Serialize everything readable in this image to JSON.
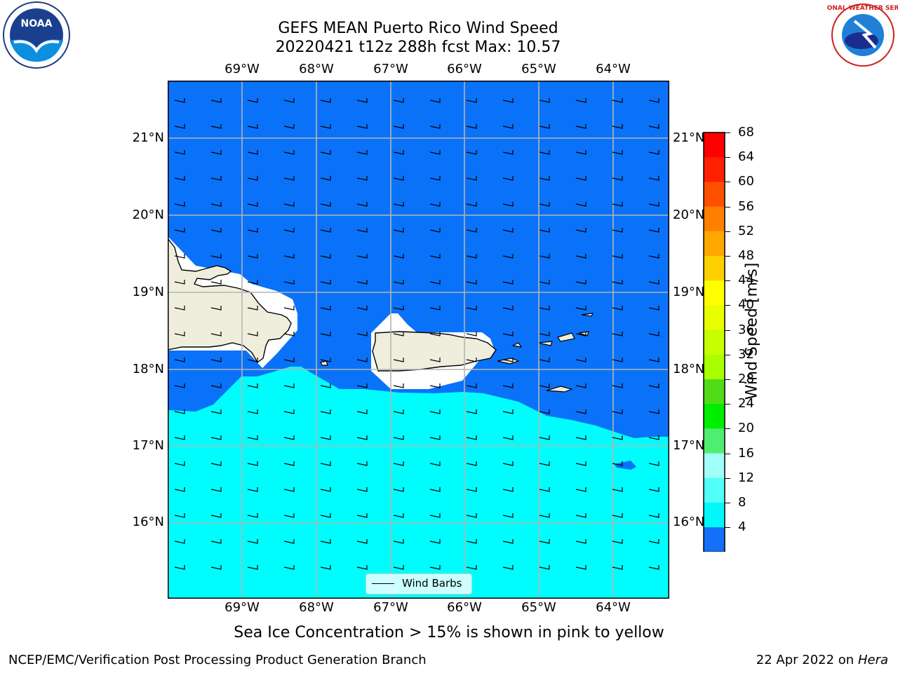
{
  "title": {
    "line1": "GEFS MEAN Puerto Rico Wind Speed",
    "line2": "20220421 t12z 288h fcst   Max: 10.57"
  },
  "logos": {
    "left": {
      "icon": "noaa-logo",
      "text": "NOAA"
    },
    "right": {
      "icon": "nws-logo",
      "text": "NATIONAL WEATHER SERVICE"
    }
  },
  "map": {
    "lon_labels": [
      "69°W",
      "68°W",
      "67°W",
      "66°W",
      "65°W",
      "64°W"
    ],
    "lat_labels": [
      "21°N",
      "20°N",
      "19°N",
      "18°N",
      "17°N",
      "16°N"
    ],
    "legend_label": "Wind Barbs",
    "colors": {
      "ocean_dark": "#0a72f8",
      "ocean_light": "#00fdfd",
      "land": "#efeedd",
      "mask": "#ffffff"
    }
  },
  "colorbar": {
    "label": "Wind Speed [m/s]",
    "ticks": [
      "68",
      "64",
      "60",
      "56",
      "52",
      "48",
      "44",
      "40",
      "36",
      "32",
      "28",
      "24",
      "20",
      "16",
      "12",
      "8",
      "4"
    ],
    "colors": [
      "#ff0000",
      "#ff2000",
      "#ff5000",
      "#ff8000",
      "#ffa800",
      "#ffd000",
      "#ffff00",
      "#e8ff00",
      "#c8ff00",
      "#a8ff00",
      "#50dd18",
      "#00ee00",
      "#50ee70",
      "#a0fff8",
      "#50fff8",
      "#00f8f8",
      "#1470f8"
    ],
    "extend_color": "#0000ee"
  },
  "caption": "Sea Ice Concentration > 15% is shown in pink to yellow",
  "footer": {
    "left": "NCEP/EMC/Verification Post Processing Product Generation Branch",
    "right_date": "22 Apr 2022 on ",
    "right_host": "Hera"
  }
}
